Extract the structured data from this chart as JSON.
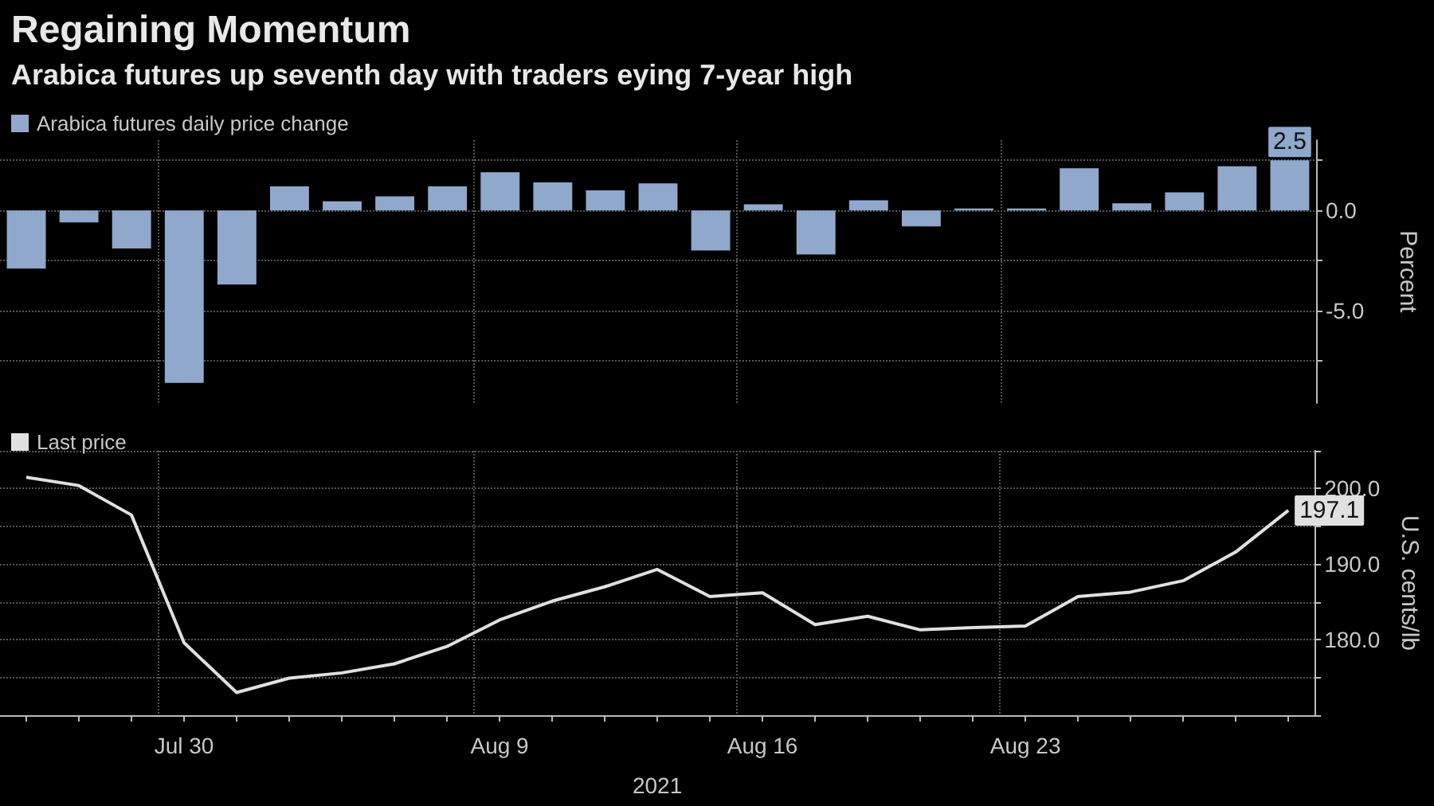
{
  "chart_data": [
    {
      "type": "bar",
      "title": "Regaining Momentum",
      "subtitle": "Arabica futures up seventh day with traders eying 7-year high",
      "categories": [
        null,
        null,
        null,
        null,
        null,
        null,
        null,
        null,
        null,
        null,
        null,
        null,
        null,
        null,
        null,
        null,
        null,
        null,
        null,
        null,
        null,
        null,
        null,
        null,
        null
      ],
      "series": [
        {
          "name": "Arabica futures daily price change",
          "color": "#8fa8cc",
          "values": [
            -2.9,
            -0.6,
            -1.9,
            -8.6,
            -3.7,
            1.2,
            0.45,
            0.7,
            1.2,
            1.9,
            1.4,
            1.0,
            1.35,
            -2.0,
            0.3,
            -2.2,
            0.5,
            -0.8,
            0.1,
            0.1,
            2.1,
            0.35,
            0.9,
            2.2,
            2.5
          ],
          "value_labels": [
            null,
            null,
            null,
            null,
            null,
            null,
            null,
            null,
            null,
            null,
            null,
            null,
            null,
            null,
            null,
            null,
            null,
            null,
            null,
            null,
            null,
            null,
            null,
            null,
            "2.5"
          ]
        }
      ],
      "ylabel": "Percent",
      "ylim": [
        -9.6,
        3.5
      ],
      "yticks": [
        {
          "value": -7.5,
          "label": null
        },
        {
          "value": -5,
          "label": "-5.0"
        },
        {
          "value": -2.5,
          "label": null
        },
        {
          "value": 0,
          "label": "0.0"
        },
        {
          "value": 2.5,
          "label": null
        }
      ],
      "grid": true,
      "legend": "top left",
      "tick_labels": "y"
    },
    {
      "type": "line",
      "xlabel": "2021",
      "categories": [
        null,
        null,
        null,
        "Jul 30",
        null,
        null,
        null,
        null,
        null,
        "Aug 9",
        null,
        null,
        null,
        null,
        "Aug 16",
        null,
        null,
        null,
        null,
        "Aug 23",
        null,
        null,
        null,
        null,
        null
      ],
      "series": [
        {
          "name": "Last price",
          "color": "#e0e0e0",
          "values": [
            201.5,
            200.4,
            196.5,
            179.6,
            173.0,
            174.9,
            175.6,
            176.8,
            179.1,
            182.6,
            185.1,
            187.0,
            189.3,
            185.7,
            186.2,
            182.0,
            183.1,
            181.3,
            181.6,
            181.8,
            185.7,
            186.3,
            187.8,
            191.6,
            197.1
          ],
          "value_labels": [
            null,
            null,
            null,
            null,
            null,
            null,
            null,
            null,
            null,
            null,
            null,
            null,
            null,
            null,
            null,
            null,
            null,
            null,
            null,
            null,
            null,
            null,
            null,
            null,
            "197.1"
          ]
        }
      ],
      "ylabel": "U.S. cents/lb",
      "ylim": [
        170,
        205
      ],
      "yticks": [
        {
          "value": 170,
          "label": null
        },
        {
          "value": 175,
          "label": null
        },
        {
          "value": 180,
          "label": "180.0"
        },
        {
          "value": 185,
          "label": null
        },
        {
          "value": 190,
          "label": "190.0"
        },
        {
          "value": 195,
          "label": null
        },
        {
          "value": 200,
          "label": "200.0"
        },
        {
          "value": 205,
          "label": null
        }
      ],
      "grid": true,
      "legend": "top left",
      "marker": "none"
    }
  ]
}
